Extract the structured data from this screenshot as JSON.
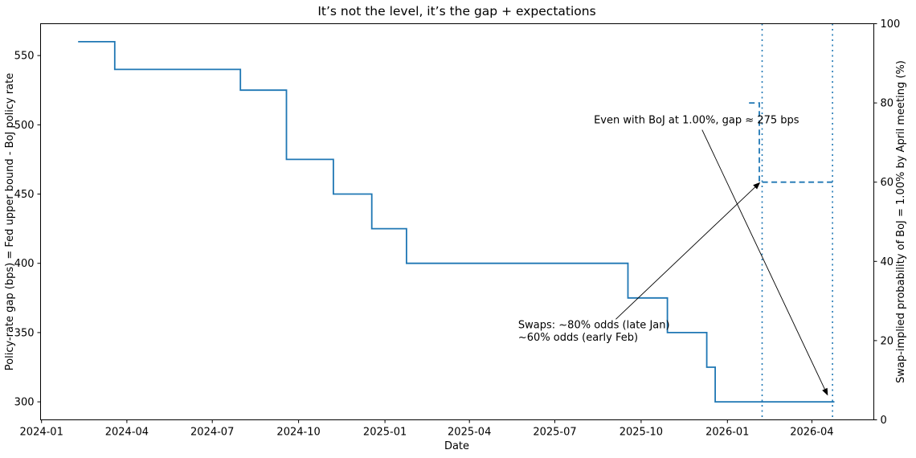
{
  "chart_data": {
    "type": "line",
    "title": "It’s not the level, it’s the gap + expectations",
    "x_axis": {
      "label": "Date",
      "ticks": [
        "2024-01",
        "2024-04",
        "2024-07",
        "2024-10",
        "2025-01",
        "2025-04",
        "2025-07",
        "2025-10",
        "2026-01",
        "2026-04"
      ],
      "lim": [
        "2023-12-31",
        "2026-06-06"
      ]
    },
    "y_left": {
      "label": "Policy-rate gap (bps) = Fed upper bound - BoJ policy rate",
      "ticks": [
        300,
        350,
        400,
        450,
        500,
        550
      ],
      "lim": [
        287,
        573
      ]
    },
    "y_right": {
      "label": "Swap-implied probability of BoJ = 1.00% by April meeting (%)",
      "ticks": [
        0,
        20,
        40,
        60,
        80,
        100
      ],
      "lim": [
        0,
        100
      ]
    },
    "grid": false,
    "legend": "none",
    "series": [
      {
        "id": "policy-gap",
        "axis": "left",
        "line_style": "solid",
        "step": "post",
        "color": "#1f77b4",
        "points": [
          [
            "2024-02-09",
            560
          ],
          [
            "2024-03-19",
            540
          ],
          [
            "2024-07-31",
            525
          ],
          [
            "2024-09-18",
            475
          ],
          [
            "2024-11-07",
            450
          ],
          [
            "2024-12-18",
            425
          ],
          [
            "2025-01-24",
            400
          ],
          [
            "2025-09-17",
            375
          ],
          [
            "2025-10-29",
            350
          ],
          [
            "2025-12-10",
            325
          ],
          [
            "2025-12-19",
            300
          ],
          [
            "2026-04-25",
            300
          ]
        ]
      },
      {
        "id": "swap-odds",
        "axis": "right",
        "line_style": "dashed",
        "step": "post",
        "color": "#1f77b4",
        "points": [
          [
            "2026-01-24",
            80
          ],
          [
            "2026-02-04",
            60
          ],
          [
            "2026-04-23",
            60
          ]
        ]
      }
    ],
    "vlines": [
      {
        "id": "early-feb-line",
        "date": "2026-02-07",
        "style": "dotted",
        "color": "#1f77b4"
      },
      {
        "id": "april-meeting-line",
        "date": "2026-04-23",
        "style": "dotted",
        "color": "#1f77b4"
      }
    ],
    "annotations": [
      {
        "id": "gap-note",
        "text": "Even with BoJ at 1.00%, gap ≈ 275 bps",
        "text_anchor": {
          "date": "2025-11-29",
          "pct": 75.8,
          "align": "middle"
        },
        "arrow": {
          "from": {
            "date": "2025-12-05",
            "pct": 73.2
          },
          "to": {
            "date": "2026-04-18",
            "pct": 6.1
          }
        }
      },
      {
        "id": "swaps-note",
        "lines": [
          "Swaps: ~80% odds (late Jan)",
          "~60% odds (early Feb)"
        ],
        "text_anchor": {
          "date": "2025-05-23",
          "pct": 25.4,
          "align": "start"
        },
        "arrow": {
          "from": {
            "date": "2025-09-04",
            "pct": 25.4
          },
          "to": {
            "date": "2026-02-05",
            "pct": 60
          }
        }
      }
    ],
    "colors": {
      "series_blue": "#1f77b4",
      "text": "#000000",
      "spine": "#000000"
    }
  }
}
